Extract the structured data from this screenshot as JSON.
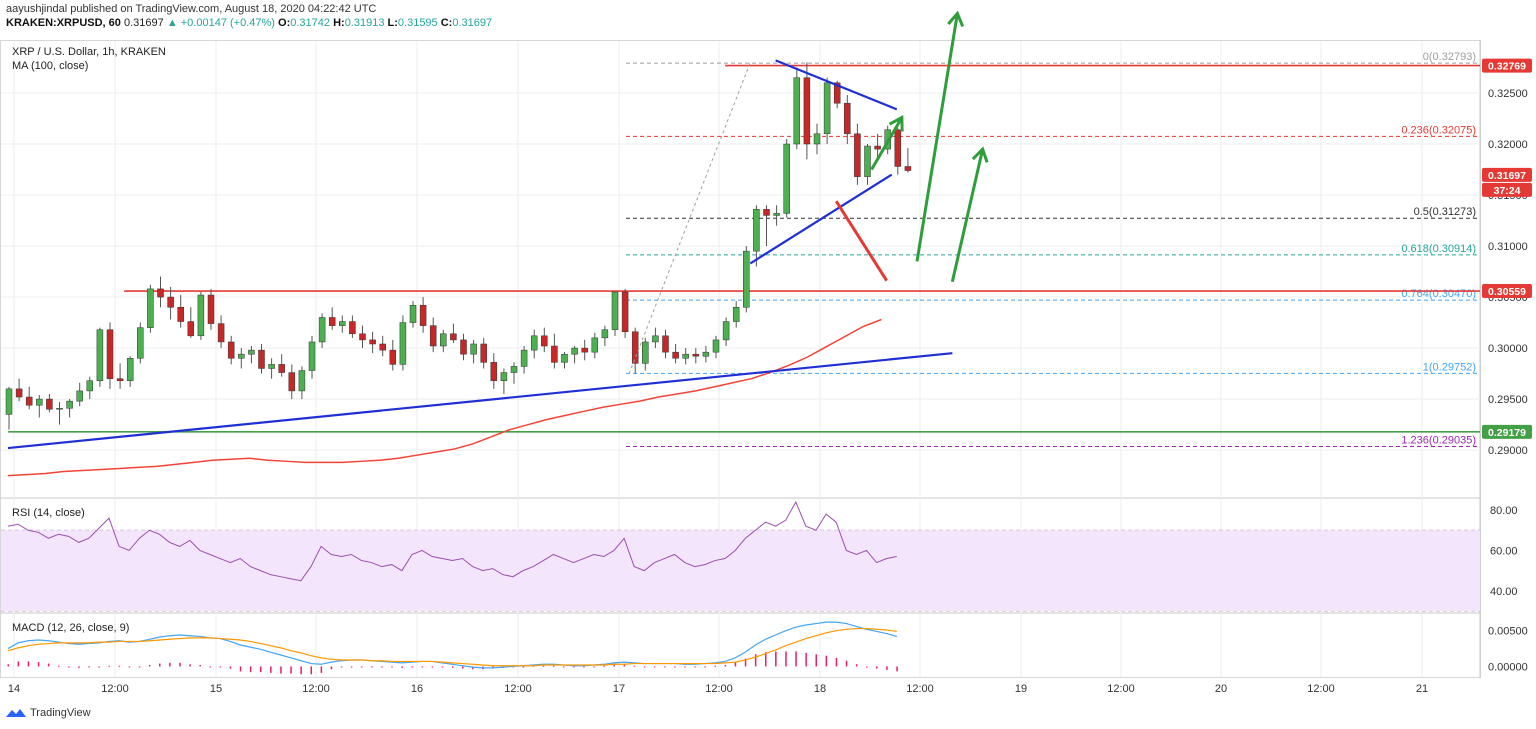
{
  "header": {
    "publisher": "aayushjindal published on TradingView.com, August 18, 2020 04:22:42 UTC",
    "symbol": "KRAKEN:XRPUSD, 60",
    "last": "0.31697",
    "change": "▲ +0.00147 (+0.47%)",
    "o_label": "O:",
    "o": "0.31742",
    "h_label": "H:",
    "h": "0.31913",
    "l_label": "L:",
    "l": "0.31595",
    "c_label": "C:",
    "c": "0.31697"
  },
  "legend": {
    "title": "XRP / U.S. Dollar, 1h, KRAKEN",
    "ma": "MA (100, close)",
    "rsi": "RSI (14, close)",
    "macd": "MACD (12, 26, close, 9)"
  },
  "footer": {
    "brand": "TradingView"
  },
  "colors": {
    "up": "#26a69a",
    "down": "#ef5350",
    "candle_up": "#4caf50",
    "candle_down": "#c62828",
    "ma": "#f44336",
    "trend": "#1f2fd6",
    "resistance": "#e53935",
    "support": "#43a047",
    "rsi": "#9c4fb0",
    "rsi_band": "#f3e5fb",
    "macd": "#42a5f5",
    "signal": "#ff9800",
    "hist": "#e91e63"
  },
  "chart_data": {
    "type": "candlestick",
    "title": "XRP / U.S. Dollar, 1h, KRAKEN",
    "x_ticks": [
      "14",
      "12:00",
      "15",
      "12:00",
      "16",
      "12:00",
      "17",
      "12:00",
      "18",
      "12:00",
      "19",
      "12:00",
      "20",
      "12:00",
      "21"
    ],
    "price_ticks": [
      "0.32500",
      "0.32000",
      "0.31500",
      "0.31000",
      "0.30500",
      "0.30000",
      "0.29500",
      "0.29000"
    ],
    "price_range": [
      0.2855,
      0.33
    ],
    "price_badges": [
      {
        "label": "0.32769",
        "value": 0.32769,
        "color": "#e53935"
      },
      {
        "label": "0.31697",
        "value": 0.31697,
        "color": "#e53935"
      },
      {
        "label": "37:24",
        "value": 0.3155,
        "color": "#e53935"
      },
      {
        "label": "0.30559",
        "value": 0.30559,
        "color": "#e53935"
      },
      {
        "label": "0.29179",
        "value": 0.29179,
        "color": "#43a047"
      }
    ],
    "fib_levels": [
      {
        "label": "0(0.32793)",
        "value": 0.32793,
        "color": "#9e9e9e"
      },
      {
        "label": "0.236(0.32075)",
        "value": 0.32075,
        "color": "#e53935"
      },
      {
        "label": "0.5(0.31273)",
        "value": 0.31273,
        "color": "#333333"
      },
      {
        "label": "0.618(0.30914)",
        "value": 0.30914,
        "color": "#26a69a"
      },
      {
        "label": "0.764(0.30470)",
        "value": 0.3047,
        "color": "#42a5f5"
      },
      {
        "label": "1(0.29752)",
        "value": 0.29752,
        "color": "#42a5f5"
      },
      {
        "label": "1.236(0.29035)",
        "value": 0.29035,
        "color": "#9c27b0"
      }
    ],
    "candles": [
      [
        0.2935,
        0.2962,
        0.292,
        0.296
      ],
      [
        0.296,
        0.297,
        0.2948,
        0.2952
      ],
      [
        0.2952,
        0.2962,
        0.294,
        0.2944
      ],
      [
        0.2944,
        0.2954,
        0.2932,
        0.295
      ],
      [
        0.295,
        0.2955,
        0.2937,
        0.294
      ],
      [
        0.294,
        0.2947,
        0.2925,
        0.2941
      ],
      [
        0.2941,
        0.295,
        0.2932,
        0.2948
      ],
      [
        0.2948,
        0.2966,
        0.2943,
        0.2958
      ],
      [
        0.2958,
        0.2972,
        0.295,
        0.2968
      ],
      [
        0.2968,
        0.302,
        0.2962,
        0.3018
      ],
      [
        0.3018,
        0.3025,
        0.296,
        0.297
      ],
      [
        0.297,
        0.2985,
        0.296,
        0.2968
      ],
      [
        0.2968,
        0.2992,
        0.2962,
        0.299
      ],
      [
        0.299,
        0.3025,
        0.2985,
        0.302
      ],
      [
        0.302,
        0.3062,
        0.3015,
        0.3058
      ],
      [
        0.3058,
        0.307,
        0.304,
        0.305
      ],
      [
        0.305,
        0.306,
        0.3028,
        0.304
      ],
      [
        0.304,
        0.3052,
        0.302,
        0.3026
      ],
      [
        0.3026,
        0.304,
        0.301,
        0.3012
      ],
      [
        0.3012,
        0.3055,
        0.3008,
        0.3052
      ],
      [
        0.3052,
        0.3058,
        0.3018,
        0.3024
      ],
      [
        0.3024,
        0.3032,
        0.3,
        0.3006
      ],
      [
        0.3006,
        0.3012,
        0.2984,
        0.299
      ],
      [
        0.299,
        0.3,
        0.298,
        0.2994
      ],
      [
        0.2994,
        0.3002,
        0.2985,
        0.2998
      ],
      [
        0.2998,
        0.3004,
        0.2975,
        0.298
      ],
      [
        0.298,
        0.299,
        0.297,
        0.2984
      ],
      [
        0.2984,
        0.2994,
        0.2972,
        0.2976
      ],
      [
        0.2976,
        0.2984,
        0.295,
        0.2958
      ],
      [
        0.2958,
        0.2982,
        0.295,
        0.2978
      ],
      [
        0.2978,
        0.3012,
        0.297,
        0.3006
      ],
      [
        0.3006,
        0.3034,
        0.3,
        0.303
      ],
      [
        0.303,
        0.304,
        0.3018,
        0.3022
      ],
      [
        0.3022,
        0.3032,
        0.3015,
        0.3026
      ],
      [
        0.3026,
        0.3032,
        0.301,
        0.3014
      ],
      [
        0.3014,
        0.3022,
        0.3,
        0.3008
      ],
      [
        0.3008,
        0.3016,
        0.2995,
        0.3004
      ],
      [
        0.3004,
        0.3012,
        0.2992,
        0.2998
      ],
      [
        0.2998,
        0.3008,
        0.2978,
        0.2984
      ],
      [
        0.2984,
        0.3032,
        0.2978,
        0.3025
      ],
      [
        0.3025,
        0.3046,
        0.302,
        0.3042
      ],
      [
        0.3042,
        0.305,
        0.3015,
        0.3022
      ],
      [
        0.3022,
        0.303,
        0.2996,
        0.3002
      ],
      [
        0.3002,
        0.3018,
        0.2996,
        0.3014
      ],
      [
        0.3014,
        0.3024,
        0.3005,
        0.3008
      ],
      [
        0.3008,
        0.3014,
        0.2988,
        0.2994
      ],
      [
        0.2994,
        0.3008,
        0.2985,
        0.3004
      ],
      [
        0.3004,
        0.301,
        0.298,
        0.2986
      ],
      [
        0.2986,
        0.2995,
        0.296,
        0.2968
      ],
      [
        0.2968,
        0.298,
        0.2955,
        0.2976
      ],
      [
        0.2976,
        0.2986,
        0.2965,
        0.2982
      ],
      [
        0.2982,
        0.3002,
        0.2975,
        0.2998
      ],
      [
        0.2998,
        0.3018,
        0.299,
        0.3012
      ],
      [
        0.3012,
        0.302,
        0.2996,
        0.3002
      ],
      [
        0.3002,
        0.3014,
        0.298,
        0.2986
      ],
      [
        0.2986,
        0.2996,
        0.298,
        0.2994
      ],
      [
        0.2994,
        0.3002,
        0.2985,
        0.3
      ],
      [
        0.3,
        0.3008,
        0.2988,
        0.2996
      ],
      [
        0.2996,
        0.3015,
        0.299,
        0.301
      ],
      [
        0.301,
        0.3022,
        0.3002,
        0.3018
      ],
      [
        0.3018,
        0.3055,
        0.3012,
        0.3055
      ],
      [
        0.3055,
        0.3058,
        0.301,
        0.3016
      ],
      [
        0.3016,
        0.302,
        0.2975,
        0.2985
      ],
      [
        0.2985,
        0.301,
        0.2978,
        0.3006
      ],
      [
        0.3006,
        0.302,
        0.3,
        0.3012
      ],
      [
        0.3012,
        0.3018,
        0.299,
        0.2996
      ],
      [
        0.2996,
        0.3004,
        0.2985,
        0.299
      ],
      [
        0.299,
        0.3,
        0.2984,
        0.2994
      ],
      [
        0.2994,
        0.3,
        0.2985,
        0.2992
      ],
      [
        0.2992,
        0.3002,
        0.2986,
        0.2996
      ],
      [
        0.2996,
        0.3012,
        0.299,
        0.3008
      ],
      [
        0.3008,
        0.303,
        0.3002,
        0.3026
      ],
      [
        0.3026,
        0.3046,
        0.302,
        0.304
      ],
      [
        0.304,
        0.31,
        0.3035,
        0.3095
      ],
      [
        0.3095,
        0.314,
        0.308,
        0.3136
      ],
      [
        0.3136,
        0.314,
        0.31,
        0.313
      ],
      [
        0.313,
        0.314,
        0.312,
        0.3132
      ],
      [
        0.3132,
        0.3205,
        0.3128,
        0.32
      ],
      [
        0.32,
        0.3275,
        0.3195,
        0.3265
      ],
      [
        0.3265,
        0.328,
        0.3185,
        0.32
      ],
      [
        0.32,
        0.322,
        0.319,
        0.321
      ],
      [
        0.321,
        0.3265,
        0.32,
        0.326
      ],
      [
        0.326,
        0.3262,
        0.3235,
        0.324
      ],
      [
        0.324,
        0.3248,
        0.32,
        0.321
      ],
      [
        0.321,
        0.322,
        0.316,
        0.3168
      ],
      [
        0.3168,
        0.32,
        0.316,
        0.3198
      ],
      [
        0.3198,
        0.321,
        0.3185,
        0.3195
      ],
      [
        0.3195,
        0.3218,
        0.319,
        0.3214
      ],
      [
        0.3214,
        0.3216,
        0.317,
        0.3178
      ],
      [
        0.3178,
        0.3196,
        0.3172,
        0.3174
      ]
    ],
    "ma100": [
      0.2875,
      0.2876,
      0.2877,
      0.2879,
      0.288,
      0.2881,
      0.2882,
      0.2883,
      0.2884,
      0.2886,
      0.2888,
      0.289,
      0.2891,
      0.2892,
      0.289,
      0.2889,
      0.2888,
      0.2888,
      0.2888,
      0.2889,
      0.289,
      0.2892,
      0.2895,
      0.2898,
      0.2901,
      0.2906,
      0.2913,
      0.292,
      0.2925,
      0.293,
      0.2934,
      0.2938,
      0.2942,
      0.2945,
      0.2948,
      0.2952,
      0.2955,
      0.2958,
      0.2962,
      0.2966,
      0.297,
      0.2976,
      0.2983,
      0.2991,
      0.3001,
      0.3011,
      0.3021,
      0.3028
    ],
    "rsi": {
      "ticks": [
        "80.00",
        "60.00",
        "40.00"
      ],
      "range": [
        30,
        85
      ],
      "values": [
        72,
        73,
        70,
        69,
        66,
        68,
        67,
        64,
        66,
        71,
        76,
        62,
        60,
        66,
        70,
        68,
        64,
        62,
        65,
        60,
        58,
        56,
        54,
        56,
        52,
        50,
        48,
        47,
        46,
        45,
        52,
        62,
        58,
        57,
        58,
        55,
        54,
        52,
        53,
        50,
        58,
        60,
        57,
        56,
        55,
        56,
        52,
        50,
        51,
        48,
        47,
        50,
        52,
        55,
        58,
        56,
        54,
        56,
        58,
        57,
        60,
        66,
        52,
        50,
        54,
        56,
        58,
        54,
        52,
        53,
        55,
        56,
        60,
        66,
        70,
        74,
        72,
        75,
        84,
        72,
        70,
        78,
        74,
        60,
        58,
        60,
        54,
        56,
        57
      ]
    },
    "macd": {
      "ticks": [
        "0.00500",
        "0.00000"
      ],
      "range": [
        -0.0012,
        0.0072
      ],
      "macd": [
        0.0025,
        0.0033,
        0.0036,
        0.0037,
        0.0036,
        0.0034,
        0.0032,
        0.0031,
        0.0032,
        0.0033,
        0.0035,
        0.0036,
        0.0034,
        0.0035,
        0.0038,
        0.0041,
        0.0043,
        0.0044,
        0.0043,
        0.0042,
        0.004,
        0.0039,
        0.0035,
        0.003,
        0.0027,
        0.0024,
        0.002,
        0.0016,
        0.0012,
        0.0008,
        0.0004,
        0.0003,
        0.0006,
        0.0008,
        0.0009,
        0.0009,
        0.0008,
        0.0007,
        0.0006,
        0.0005,
        0.0006,
        0.0007,
        0.0007,
        0.0005,
        0.0003,
        0.0001,
        -0.0001,
        -0.0002,
        -0.0002,
        -0.0001,
        0.0,
        0.0001,
        0.0002,
        0.0003,
        0.0003,
        0.0002,
        0.0001,
        0.0001,
        0.0002,
        0.0003,
        0.0005,
        0.0006,
        0.0005,
        0.0004,
        0.0004,
        0.0004,
        0.0004,
        0.0003,
        0.0003,
        0.0004,
        0.0005,
        0.0007,
        0.0012,
        0.002,
        0.003,
        0.0038,
        0.0044,
        0.005,
        0.0055,
        0.0058,
        0.006,
        0.0062,
        0.0062,
        0.006,
        0.0056,
        0.0052,
        0.0049,
        0.0046,
        0.0042
      ],
      "signal": [
        0.0022,
        0.0026,
        0.0029,
        0.0031,
        0.0032,
        0.0033,
        0.0033,
        0.0033,
        0.0033,
        0.0034,
        0.0034,
        0.0035,
        0.0035,
        0.0035,
        0.0036,
        0.0037,
        0.0038,
        0.0039,
        0.004,
        0.004,
        0.004,
        0.0039,
        0.0038,
        0.0037,
        0.0035,
        0.0032,
        0.0029,
        0.0026,
        0.0022,
        0.0019,
        0.0015,
        0.0012,
        0.001,
        0.0009,
        0.0009,
        0.0009,
        0.0008,
        0.0008,
        0.0007,
        0.0007,
        0.0007,
        0.0007,
        0.0007,
        0.0006,
        0.0005,
        0.0004,
        0.0003,
        0.0002,
        0.0001,
        0.0001,
        0.0001,
        0.0001,
        0.0001,
        0.0002,
        0.0002,
        0.0002,
        0.0002,
        0.0002,
        0.0002,
        0.0002,
        0.0003,
        0.0003,
        0.0004,
        0.0004,
        0.0004,
        0.0004,
        0.0004,
        0.0004,
        0.0004,
        0.0004,
        0.0004,
        0.0005,
        0.0006,
        0.0009,
        0.0013,
        0.0018,
        0.0023,
        0.0029,
        0.0034,
        0.0039,
        0.0043,
        0.0047,
        0.005,
        0.0052,
        0.0053,
        0.0053,
        0.0052,
        0.0051,
        0.0049
      ]
    },
    "drawings": {
      "trend_lines": [
        {
          "p1": [
            0,
            0.2902
          ],
          "p2": [
            93.5,
            0.2995
          ]
        },
        {
          "p1": [
            73.5,
            0.3083
          ],
          "p2": [
            87.5,
            0.317
          ]
        },
        {
          "p1": [
            76,
            0.3282
          ],
          "p2": [
            88,
            0.3234
          ]
        }
      ],
      "horizontal_lines": [
        {
          "value": 0.30559,
          "from": 11.5,
          "color": "#e53935"
        },
        {
          "value": 0.32769,
          "from": 71,
          "color": "#e53935"
        },
        {
          "value": 0.29179,
          "from": 0,
          "color": "#43a047"
        }
      ],
      "arrows": [
        {
          "from": [
            90,
            0.3085
          ],
          "to": [
            94,
            0.3328
          ],
          "color": "#2e9e3a"
        },
        {
          "from": [
            85.5,
            0.3175
          ],
          "to": [
            88.5,
            0.3226
          ],
          "color": "#2e9e3a"
        },
        {
          "from": [
            93.5,
            0.3065
          ],
          "to": [
            96.5,
            0.3195
          ],
          "color": "#2e9e3a"
        },
        {
          "from": [
            82,
            0.3144
          ],
          "to": [
            87,
            0.3066
          ],
          "color": "#e53935"
        }
      ],
      "dashed_diagonal": {
        "p1": [
          61.5,
          0.2975
        ],
        "p2": [
          73.5,
          0.328
        ]
      }
    }
  }
}
